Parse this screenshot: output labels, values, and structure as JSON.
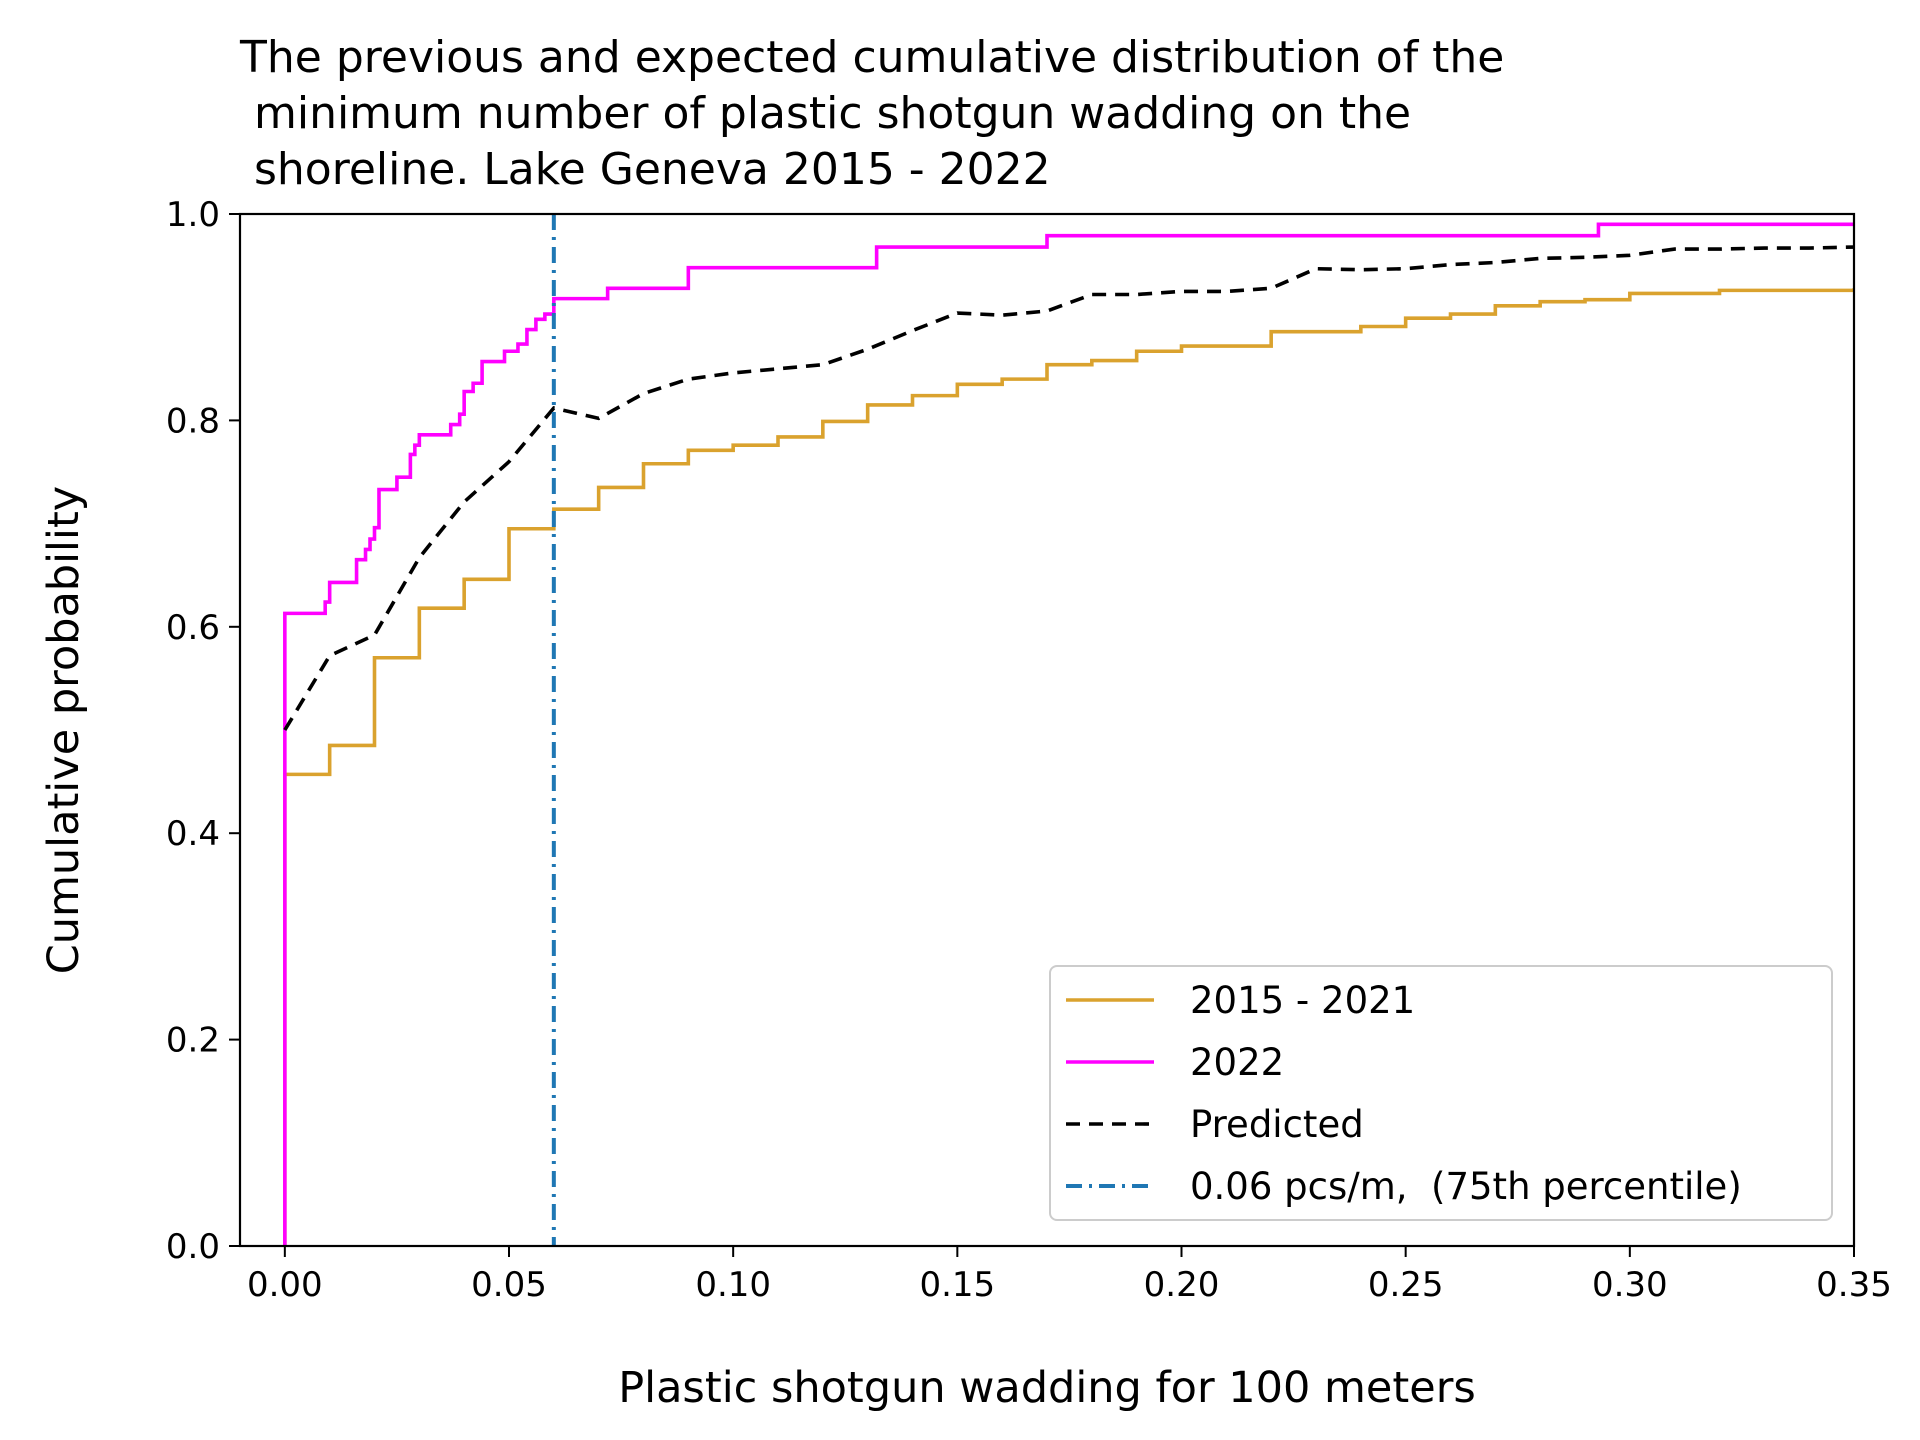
{
  "chart_data": {
    "type": "line",
    "title_lines": [
      "The previous and expected cumulative distribution of the",
      " minimum number of plastic shotgun wadding on the",
      " shoreline. Lake Geneva 2015 - 2022"
    ],
    "xlabel": "Plastic shotgun wadding for 100 meters",
    "ylabel": "Cumulative probability",
    "xlim": [
      -0.01,
      0.35
    ],
    "ylim": [
      0.0,
      1.0
    ],
    "xticks": [
      0.0,
      0.05,
      0.1,
      0.15,
      0.2,
      0.25,
      0.3,
      0.35
    ],
    "xtick_labels": [
      "0.00",
      "0.05",
      "0.10",
      "0.15",
      "0.20",
      "0.25",
      "0.30",
      "0.35"
    ],
    "yticks": [
      0.0,
      0.2,
      0.4,
      0.6,
      0.8,
      1.0
    ],
    "ytick_labels": [
      "0.0",
      "0.2",
      "0.4",
      "0.6",
      "0.8",
      "1.0"
    ],
    "grid": false,
    "legend_position": "lower-right",
    "series": [
      {
        "name": "2015 - 2021",
        "color": "#DAA22E",
        "style": "step",
        "x": [
          0.0,
          0.0,
          0.01,
          0.02,
          0.03,
          0.04,
          0.05,
          0.06,
          0.07,
          0.08,
          0.09,
          0.1,
          0.11,
          0.12,
          0.13,
          0.14,
          0.15,
          0.16,
          0.17,
          0.18,
          0.19,
          0.2,
          0.22,
          0.24,
          0.25,
          0.26,
          0.27,
          0.28,
          0.29,
          0.3,
          0.32,
          0.35
        ],
        "y": [
          0.0,
          0.457,
          0.485,
          0.57,
          0.618,
          0.646,
          0.695,
          0.714,
          0.735,
          0.758,
          0.771,
          0.776,
          0.784,
          0.799,
          0.815,
          0.824,
          0.835,
          0.84,
          0.854,
          0.858,
          0.867,
          0.872,
          0.886,
          0.891,
          0.899,
          0.903,
          0.911,
          0.915,
          0.917,
          0.923,
          0.926,
          0.928
        ]
      },
      {
        "name": "2022",
        "color": "#FF00FF",
        "style": "step",
        "x": [
          0.0,
          0.0,
          0.009,
          0.01,
          0.016,
          0.018,
          0.019,
          0.02,
          0.021,
          0.025,
          0.028,
          0.029,
          0.03,
          0.032,
          0.037,
          0.039,
          0.04,
          0.042,
          0.044,
          0.049,
          0.052,
          0.054,
          0.056,
          0.058,
          0.06,
          0.072,
          0.09,
          0.132,
          0.17,
          0.293,
          0.35
        ],
        "y": [
          0.0,
          0.613,
          0.624,
          0.643,
          0.665,
          0.675,
          0.685,
          0.696,
          0.733,
          0.745,
          0.767,
          0.776,
          0.786,
          0.786,
          0.796,
          0.806,
          0.828,
          0.836,
          0.857,
          0.867,
          0.874,
          0.888,
          0.898,
          0.903,
          0.918,
          0.928,
          0.948,
          0.968,
          0.979,
          0.99,
          0.99
        ]
      },
      {
        "name": "Predicted",
        "color": "#000000",
        "style": "dashed",
        "x": [
          0.0,
          0.01,
          0.02,
          0.03,
          0.04,
          0.05,
          0.06,
          0.07,
          0.08,
          0.09,
          0.1,
          0.11,
          0.12,
          0.13,
          0.14,
          0.15,
          0.16,
          0.17,
          0.18,
          0.19,
          0.2,
          0.21,
          0.22,
          0.23,
          0.24,
          0.25,
          0.26,
          0.27,
          0.28,
          0.29,
          0.3,
          0.31,
          0.32,
          0.33,
          0.34,
          0.35
        ],
        "y": [
          0.5,
          0.572,
          0.592,
          0.667,
          0.721,
          0.76,
          0.812,
          0.802,
          0.826,
          0.84,
          0.846,
          0.85,
          0.854,
          0.869,
          0.887,
          0.904,
          0.902,
          0.906,
          0.922,
          0.922,
          0.925,
          0.925,
          0.928,
          0.947,
          0.946,
          0.947,
          0.951,
          0.953,
          0.957,
          0.958,
          0.96,
          0.966,
          0.966,
          0.967,
          0.967,
          0.968
        ]
      },
      {
        "name": "0.06 pcs/m,  (75th percentile)",
        "color": "#1F77B4",
        "style": "dashdot-vertical",
        "x_value": 0.06
      }
    ]
  }
}
